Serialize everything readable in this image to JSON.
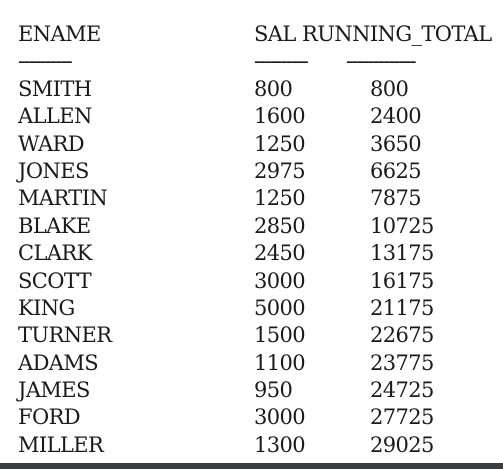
{
  "headers": {
    "ename": "ENAME",
    "sal": "SAL",
    "running_total": "RUNNING_TOTAL"
  },
  "separators": {
    "ename": "----------",
    "sal": "----------",
    "running_total": "-------------"
  },
  "rows": [
    {
      "ename": "SMITH",
      "sal": "800",
      "running_total": "800"
    },
    {
      "ename": "ALLEN",
      "sal": "1600",
      "running_total": "2400"
    },
    {
      "ename": "WARD",
      "sal": "1250",
      "running_total": "3650"
    },
    {
      "ename": "JONES",
      "sal": "2975",
      "running_total": "6625"
    },
    {
      "ename": "MARTIN",
      "sal": "1250",
      "running_total": "7875"
    },
    {
      "ename": "BLAKE",
      "sal": "2850",
      "running_total": "10725"
    },
    {
      "ename": "CLARK",
      "sal": "2450",
      "running_total": "13175"
    },
    {
      "ename": "SCOTT",
      "sal": "3000",
      "running_total": "16175"
    },
    {
      "ename": "KING",
      "sal": "5000",
      "running_total": "21175"
    },
    {
      "ename": "TURNER",
      "sal": "1500",
      "running_total": "22675"
    },
    {
      "ename": "ADAMS",
      "sal": "1100",
      "running_total": "23775"
    },
    {
      "ename": "JAMES",
      "sal": "950",
      "running_total": "24725"
    },
    {
      "ename": "FORD",
      "sal": "3000",
      "running_total": "27725"
    },
    {
      "ename": "MILLER",
      "sal": "1300",
      "running_total": "29025"
    }
  ]
}
